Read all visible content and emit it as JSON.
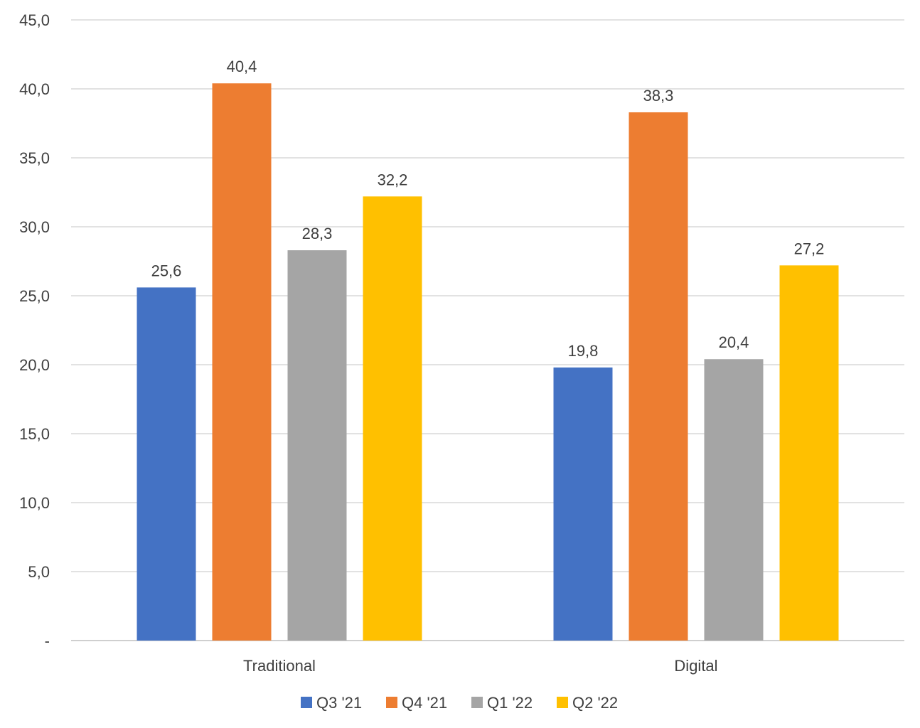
{
  "chart_data": {
    "type": "bar",
    "categories": [
      "Traditional",
      "Digital"
    ],
    "series": [
      {
        "name": "Q3 '21",
        "values": [
          25.6,
          19.8
        ],
        "labels": [
          "25,6",
          "19,8"
        ],
        "color": "#4472C4"
      },
      {
        "name": "Q4 '21",
        "values": [
          40.4,
          38.3
        ],
        "labels": [
          "40,4",
          "38,3"
        ],
        "color": "#ED7D31"
      },
      {
        "name": "Q1 '22",
        "values": [
          28.3,
          20.4
        ],
        "labels": [
          "28,3",
          "20,4"
        ],
        "color": "#A5A5A5"
      },
      {
        "name": "Q2 '22",
        "values": [
          32.2,
          27.2
        ],
        "labels": [
          "32,2",
          "27,2"
        ],
        "color": "#FFC000"
      }
    ],
    "ylim": [
      0,
      45
    ],
    "yticks": [
      0,
      5,
      10,
      15,
      20,
      25,
      30,
      35,
      40,
      45
    ],
    "ytick_labels": [
      "-",
      "5,0",
      "10,0",
      "15,0",
      "20,0",
      "25,0",
      "30,0",
      "35,0",
      "40,0",
      "45,0"
    ],
    "grid": true,
    "legend_position": "bottom",
    "title": "",
    "xlabel": "",
    "ylabel": ""
  }
}
